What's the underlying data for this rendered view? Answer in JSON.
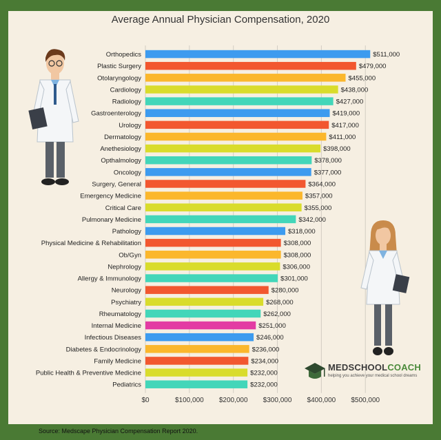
{
  "source_text": "Source:  Medscape Physician Compensation Report 2020.",
  "logo": {
    "name_part1": "MEDSCHOOL",
    "name_part2": "COACH",
    "tagline": "helping you achieve your medical school dreams"
  },
  "colors": {
    "background": "#4a7a34",
    "panel": "#f6efe2",
    "grid": "#d2cdc3"
  },
  "chart_data": {
    "type": "bar",
    "orientation": "horizontal",
    "title": "Average Annual Physician Compensation, 2020",
    "xlabel": "",
    "ylabel": "",
    "xlim": [
      0,
      520000
    ],
    "xticks": [
      0,
      100000,
      200000,
      300000,
      400000,
      500000
    ],
    "xtick_labels": [
      "$0",
      "$100,000",
      "$200,000",
      "$300,000",
      "$400,000",
      "$500,000"
    ],
    "grid": true,
    "categories": [
      "Orthopedics",
      "Plastic Surgery",
      "Otolaryngology",
      "Cardiology",
      "Radiology",
      "Gastroenterology",
      "Urology",
      "Dermatology",
      "Anethesiology",
      "Opthalmology",
      "Oncology",
      "Surgery, General",
      "Emergency Medicine",
      "Critical Care",
      "Pulmonary Medicine",
      "Pathology",
      "Physical Medicine & Rehabilitation",
      "Ob/Gyn",
      "Nephrology",
      "Allergy & Immunology",
      "Neurology",
      "Psychiatry",
      "Rheumatology",
      "Internal Medicine",
      "Infectious Diseases",
      "Diabetes & Endocrinology",
      "Family Medicine",
      "Public Health & Preventive Medicine",
      "Pediatrics"
    ],
    "values": [
      511000,
      479000,
      455000,
      438000,
      427000,
      419000,
      417000,
      411000,
      398000,
      378000,
      377000,
      364000,
      357000,
      355000,
      342000,
      318000,
      308000,
      308000,
      306000,
      301000,
      280000,
      268000,
      262000,
      251000,
      246000,
      236000,
      234000,
      232000,
      232000
    ],
    "value_labels": [
      "$511,000",
      "$479,000",
      "$455,000",
      "$438,000",
      "$427,000",
      "$419,000",
      "$417,000",
      "$411,000",
      "$398,000",
      "$378,000",
      "$377,000",
      "$364,000",
      "$357,000",
      "$355,000",
      "$342,000",
      "$318,000",
      "$308,000",
      "$308,000",
      "$306,000",
      "$301,000",
      "$280,000",
      "$268,000",
      "$262,000",
      "$251,000",
      "$246,000",
      "$236,000",
      "$234,000",
      "$232,000",
      "$232,000"
    ],
    "bar_colors": [
      "#3d9bef",
      "#f2572f",
      "#fbb72c",
      "#d9dc2c",
      "#43d6b9",
      "#3d9bef",
      "#f2572f",
      "#fbb72c",
      "#d9dc2c",
      "#43d6b9",
      "#3d9bef",
      "#f2572f",
      "#fbb72c",
      "#d9dc2c",
      "#43d6b9",
      "#3d9bef",
      "#f2572f",
      "#fbb72c",
      "#d9dc2c",
      "#43d6b9",
      "#f2572f",
      "#d9dc2c",
      "#43d6b9",
      "#e33ba3",
      "#3d9bef",
      "#fbb72c",
      "#f2572f",
      "#d9dc2c",
      "#43d6b9"
    ]
  }
}
